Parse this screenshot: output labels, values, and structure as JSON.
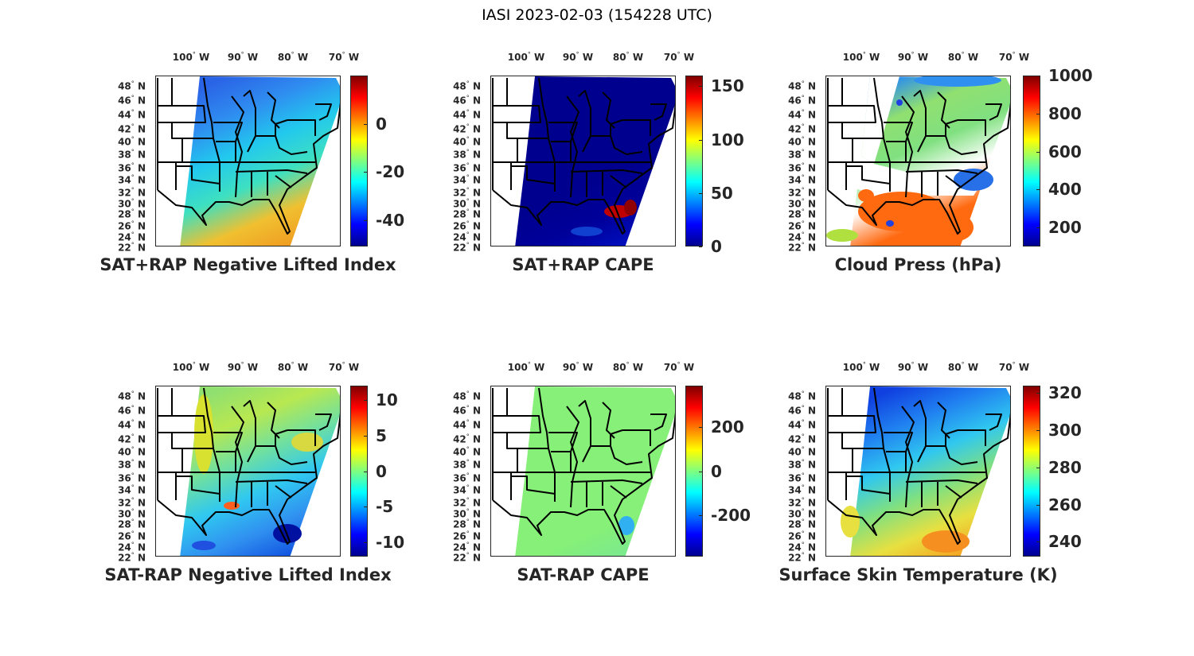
{
  "figure_title": "IASI 2023-02-03 (154228 UTC)",
  "degree_symbol": "°",
  "lon_labels": [
    "100",
    "90",
    "80",
    "70"
  ],
  "lon_suffix": "W",
  "lat_labels": [
    "48",
    "46",
    "44",
    "42",
    "40",
    "38",
    "36",
    "34",
    "32",
    "30",
    "28",
    "26",
    "24",
    "22"
  ],
  "lat_suffix": "N",
  "colormap": [
    "#00008f",
    "#0000ff",
    "#00ffff",
    "#ffff00",
    "#ff0000",
    "#800000"
  ],
  "panels": [
    {
      "title": "SAT+RAP Negative Lifted Index",
      "clim": [
        -51,
        20
      ],
      "ticks": [
        "0",
        "-20",
        "-40"
      ],
      "tick_values": [
        0,
        -20,
        -40
      ],
      "swath_colors": [
        "#2a64e6",
        "#2f8cf0",
        "#22c8ee",
        "#3ee0c0",
        "#f0c030",
        "#f09a20"
      ]
    },
    {
      "title": "SAT+RAP CAPE",
      "clim": [
        0,
        160
      ],
      "ticks": [
        "150",
        "100",
        "50",
        "0"
      ],
      "tick_values": [
        150,
        100,
        50,
        0
      ],
      "swath_colors": [
        "#00008f",
        "#00008f",
        "#00008f",
        "#00008f",
        "#00009a",
        "#0010c0"
      ]
    },
    {
      "title": "Cloud Press (hPa)",
      "clim": [
        100,
        1000
      ],
      "ticks": [
        "1000",
        "800",
        "600",
        "400",
        "200"
      ],
      "tick_values": [
        1000,
        800,
        600,
        400,
        200
      ],
      "swath_colors": [
        "#2a8cf0",
        "#90e070",
        "#80e080",
        "#ffffff",
        "#ff6a10",
        "#ff6a10"
      ]
    },
    {
      "title": "SAT-RAP Negative Lifted Index",
      "clim": [
        -12,
        12
      ],
      "ticks": [
        "10",
        "5",
        "0",
        "-5",
        "-10"
      ],
      "tick_values": [
        10,
        5,
        0,
        -5,
        -10
      ],
      "swath_colors": [
        "#90e070",
        "#b8e850",
        "#70e0a0",
        "#30c8f0",
        "#3090f0",
        "#1050e0"
      ]
    },
    {
      "title": "SAT-RAP CAPE",
      "clim": [
        -390,
        390
      ],
      "ticks": [
        "200",
        "0",
        "-200"
      ],
      "tick_values": [
        200,
        0,
        -200
      ],
      "swath_colors": [
        "#86f078",
        "#86f078",
        "#86f078",
        "#86f078",
        "#86f078",
        "#7ae890"
      ]
    },
    {
      "title": "Surface Skin Temperature (K)",
      "clim": [
        232,
        324
      ],
      "ticks": [
        "320",
        "300",
        "280",
        "260",
        "240"
      ],
      "tick_values": [
        320,
        300,
        280,
        260,
        240
      ],
      "swath_colors": [
        "#1040e0",
        "#2080f0",
        "#30c8f0",
        "#80e080",
        "#e8e040",
        "#f5a020"
      ]
    }
  ]
}
